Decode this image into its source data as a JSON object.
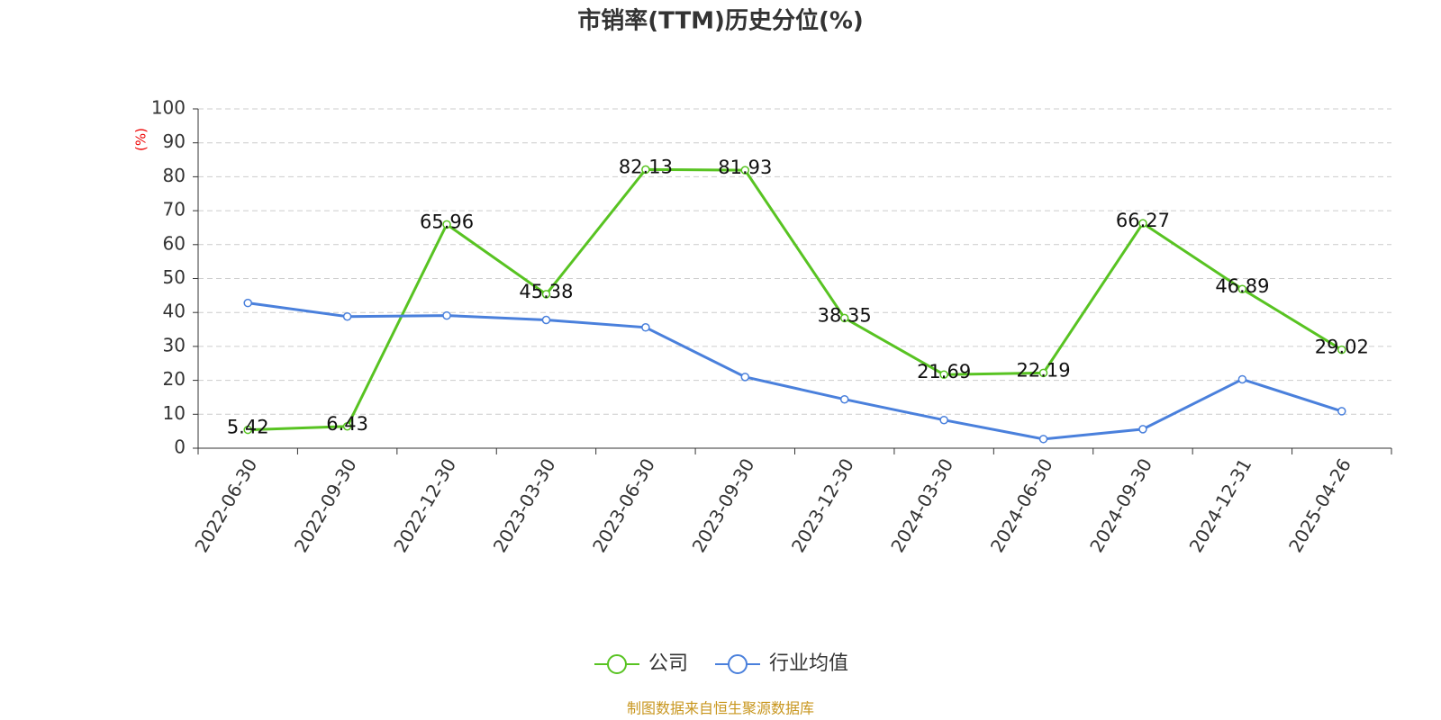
{
  "chart_data": {
    "type": "line",
    "title": "市销率(TTM)历史分位(%)",
    "y_label": "(%)",
    "source": "制图数据来自恒生聚源数据库",
    "categories": [
      "2022-06-30",
      "2022-09-30",
      "2022-12-30",
      "2023-03-30",
      "2023-06-30",
      "2023-09-30",
      "2023-12-30",
      "2024-03-30",
      "2024-06-30",
      "2024-09-30",
      "2024-12-31",
      "2025-04-26"
    ],
    "series": [
      {
        "name": "公司",
        "color": "#58c322",
        "values": [
          5.42,
          6.43,
          65.96,
          45.38,
          82.13,
          81.93,
          38.35,
          21.69,
          22.19,
          66.27,
          46.89,
          29.02
        ],
        "show_labels": true
      },
      {
        "name": "行业均值",
        "color": "#4a80dc",
        "values": [
          42.8,
          38.8,
          39.1,
          37.8,
          35.6,
          21.0,
          14.4,
          8.3,
          2.7,
          5.6,
          20.3,
          10.9
        ],
        "show_labels": false
      }
    ],
    "ylim": [
      0,
      100
    ],
    "yticks": [
      0,
      10,
      20,
      30,
      40,
      50,
      60,
      70,
      80,
      90,
      100
    ],
    "grid": true,
    "legend": "bottom"
  }
}
